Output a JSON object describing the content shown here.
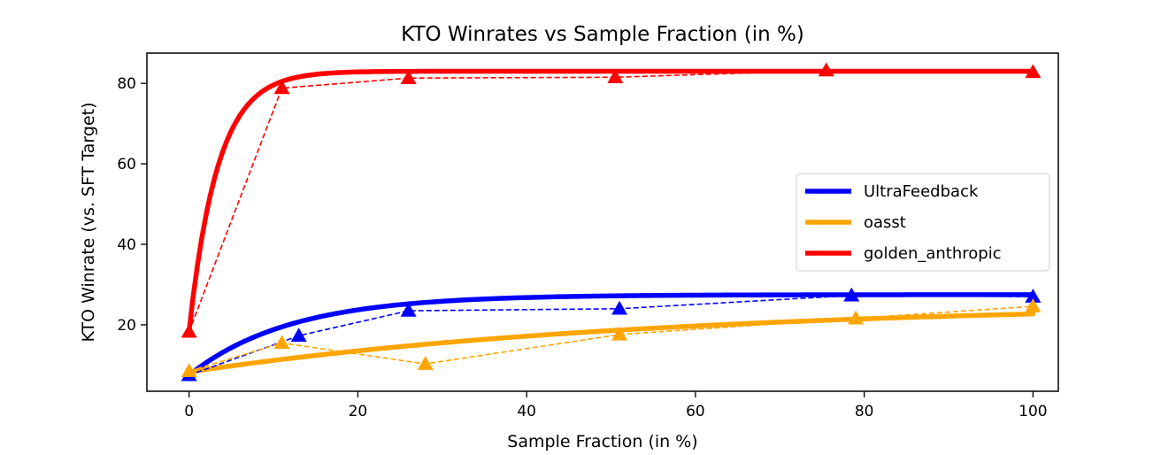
{
  "chart_data": {
    "type": "line",
    "title": "KTO Winrates vs Sample Fraction (in %)",
    "xlabel": "Sample Fraction (in %)",
    "ylabel": "KTO Winrate (vs. SFT Target)",
    "xlim": [
      -5,
      103
    ],
    "ylim": [
      3.5,
      87.5
    ],
    "xticks": [
      0,
      20,
      40,
      60,
      80,
      100
    ],
    "yticks": [
      20,
      40,
      60,
      80
    ],
    "grid": false,
    "legend_position": "center-right",
    "series": [
      {
        "name": "UltraFeedback",
        "color": "#0000ff",
        "points": {
          "x": [
            0,
            13,
            26,
            51,
            78.5,
            100
          ],
          "y": [
            7.5,
            17.3,
            23.5,
            24.0,
            27.3,
            27.0
          ]
        },
        "fit": {
          "a": 27.5,
          "b": 20.0,
          "tau": 12.0
        }
      },
      {
        "name": "oasst",
        "color": "#ffa500",
        "points": {
          "x": [
            0,
            11,
            28,
            51,
            79,
            100
          ],
          "y": [
            8.5,
            15.5,
            10.3,
            17.6,
            21.6,
            24.6
          ]
        },
        "fit": {
          "a": 25.5,
          "b": 17.2,
          "tau": 55.0
        }
      },
      {
        "name": "golden_anthropic",
        "color": "#ff0000",
        "points": {
          "x": [
            0,
            11,
            26,
            50.5,
            75.5,
            100
          ],
          "y": [
            18.3,
            78.8,
            81.3,
            81.5,
            83.2,
            82.8
          ]
        },
        "fit": {
          "a": 83.0,
          "b": 64.5,
          "tau": 3.4
        }
      }
    ]
  }
}
